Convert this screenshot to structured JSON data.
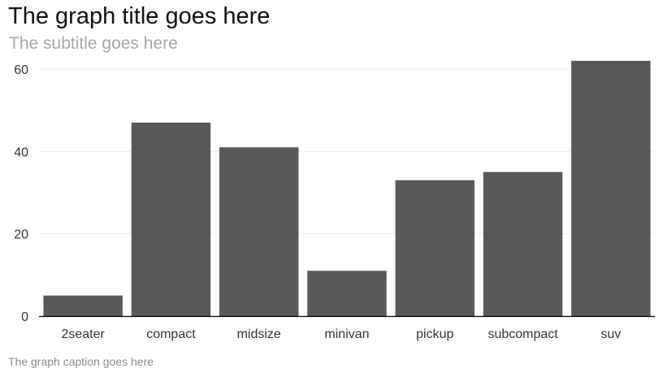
{
  "chart_data": {
    "type": "bar",
    "title": "The graph title goes here",
    "subtitle": "The subtitle goes here",
    "caption": "The graph caption goes here",
    "xlabel": "",
    "ylabel": "",
    "categories": [
      "2seater",
      "compact",
      "midsize",
      "minivan",
      "pickup",
      "subcompact",
      "suv"
    ],
    "values": [
      5,
      47,
      41,
      11,
      33,
      35,
      62
    ],
    "yticks": [
      0,
      20,
      40,
      60
    ],
    "ylim": [
      0,
      64
    ],
    "grid": true,
    "legend": "none",
    "bar_color": "#595959",
    "grid_color": "#ebebeb",
    "axis_color": "#000000"
  }
}
